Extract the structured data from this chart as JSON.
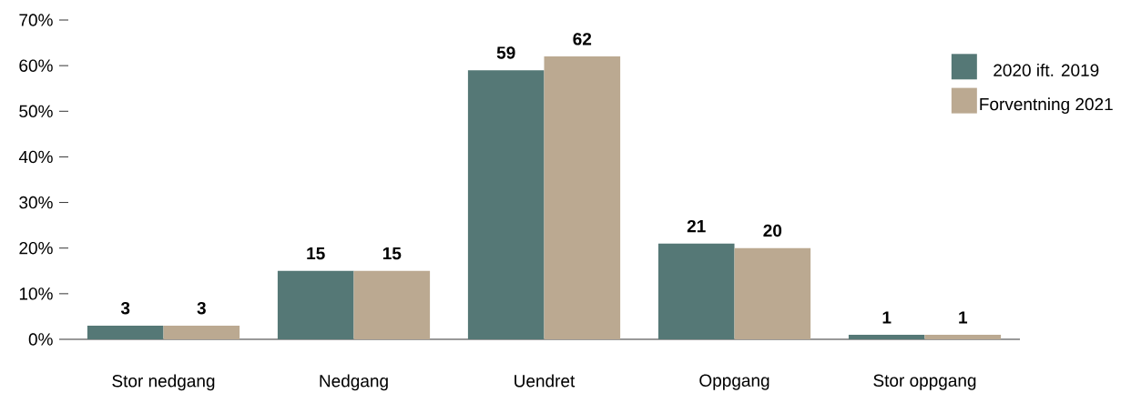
{
  "chart_data": {
    "type": "bar",
    "categories": [
      "Stor nedgang",
      "Nedgang",
      "Uendret",
      "Oppgang",
      "Stor oppgang"
    ],
    "series": [
      {
        "name": "2020 ift. 2019",
        "color": "#557876",
        "values": [
          3,
          15,
          59,
          21,
          1
        ]
      },
      {
        "name": "Forventning 2021",
        "color": "#bba991",
        "values": [
          3,
          15,
          62,
          20,
          1
        ]
      }
    ],
    "ylim": [
      0,
      70
    ],
    "yticks": [
      {
        "value": 0,
        "label": "0%"
      },
      {
        "value": 10,
        "label": "10%"
      },
      {
        "value": 20,
        "label": "20%"
      },
      {
        "value": 30,
        "label": "30%"
      },
      {
        "value": 40,
        "label": "40%"
      },
      {
        "value": 50,
        "label": "50%"
      },
      {
        "value": 60,
        "label": "60%"
      },
      {
        "value": 70,
        "label": "70%"
      }
    ],
    "data_labels": true,
    "legend": "top right",
    "grid": false
  }
}
